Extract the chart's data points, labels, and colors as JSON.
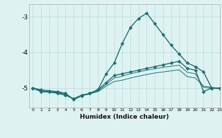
{
  "xlabel": "Humidex (Indice chaleur)",
  "xlim": [
    -0.5,
    23
  ],
  "ylim": [
    -5.55,
    -2.65
  ],
  "yticks": [
    -5,
    -4,
    -3
  ],
  "xticks": [
    0,
    1,
    2,
    3,
    4,
    5,
    6,
    7,
    8,
    9,
    10,
    11,
    12,
    13,
    14,
    15,
    16,
    17,
    18,
    19,
    20,
    21,
    22,
    23
  ],
  "bg_color": "#dff2f2",
  "grid_color": "#b8dada",
  "line_color": "#1a7070",
  "lines": [
    {
      "x": [
        0,
        1,
        2,
        3,
        4,
        5,
        6,
        7,
        8,
        9,
        10,
        11,
        12,
        13,
        14,
        15,
        16,
        17,
        18,
        19,
        20,
        21,
        22,
        23
      ],
      "y": [
        -5.0,
        -5.1,
        -5.1,
        -5.15,
        -5.2,
        -5.3,
        -5.2,
        -5.15,
        -5.05,
        -4.6,
        -4.3,
        -3.75,
        -3.3,
        -3.05,
        -2.9,
        -3.2,
        -3.5,
        -3.8,
        -4.05,
        -4.3,
        -4.4,
        -4.55,
        -5.0,
        -5.0
      ],
      "marker": true,
      "markersize": 2.5,
      "linewidth": 1.0
    },
    {
      "x": [
        0,
        1,
        2,
        3,
        4,
        5,
        6,
        7,
        8,
        9,
        10,
        11,
        12,
        13,
        14,
        15,
        16,
        17,
        18,
        19,
        20,
        21,
        22,
        23
      ],
      "y": [
        -5.0,
        -5.05,
        -5.08,
        -5.1,
        -5.15,
        -5.32,
        -5.22,
        -5.15,
        -5.05,
        -4.85,
        -4.65,
        -4.6,
        -4.55,
        -4.5,
        -4.45,
        -4.4,
        -4.35,
        -4.3,
        -4.25,
        -4.45,
        -4.5,
        -5.1,
        -5.0,
        -5.0
      ],
      "marker": true,
      "markersize": 2.5,
      "linewidth": 1.0
    },
    {
      "x": [
        0,
        1,
        2,
        3,
        4,
        5,
        6,
        7,
        8,
        9,
        10,
        11,
        12,
        13,
        14,
        15,
        16,
        17,
        18,
        19,
        20,
        21,
        22,
        23
      ],
      "y": [
        -5.0,
        -5.1,
        -5.12,
        -5.14,
        -5.17,
        -5.32,
        -5.2,
        -5.16,
        -5.1,
        -4.95,
        -4.82,
        -4.78,
        -4.72,
        -4.67,
        -4.62,
        -4.58,
        -4.55,
        -4.52,
        -4.49,
        -4.68,
        -4.72,
        -4.95,
        -4.98,
        -5.02
      ],
      "marker": false,
      "markersize": 0,
      "linewidth": 0.7
    },
    {
      "x": [
        0,
        1,
        2,
        3,
        4,
        5,
        6,
        7,
        8,
        9,
        10,
        11,
        12,
        13,
        14,
        15,
        16,
        17,
        18,
        19,
        20,
        21,
        22,
        23
      ],
      "y": [
        -5.0,
        -5.08,
        -5.1,
        -5.12,
        -5.15,
        -5.33,
        -5.21,
        -5.17,
        -5.08,
        -4.9,
        -4.72,
        -4.67,
        -4.6,
        -4.55,
        -4.5,
        -4.46,
        -4.42,
        -4.39,
        -4.36,
        -4.56,
        -4.6,
        -4.98,
        -5.0,
        -5.02
      ],
      "marker": false,
      "markersize": 0,
      "linewidth": 0.7
    }
  ]
}
